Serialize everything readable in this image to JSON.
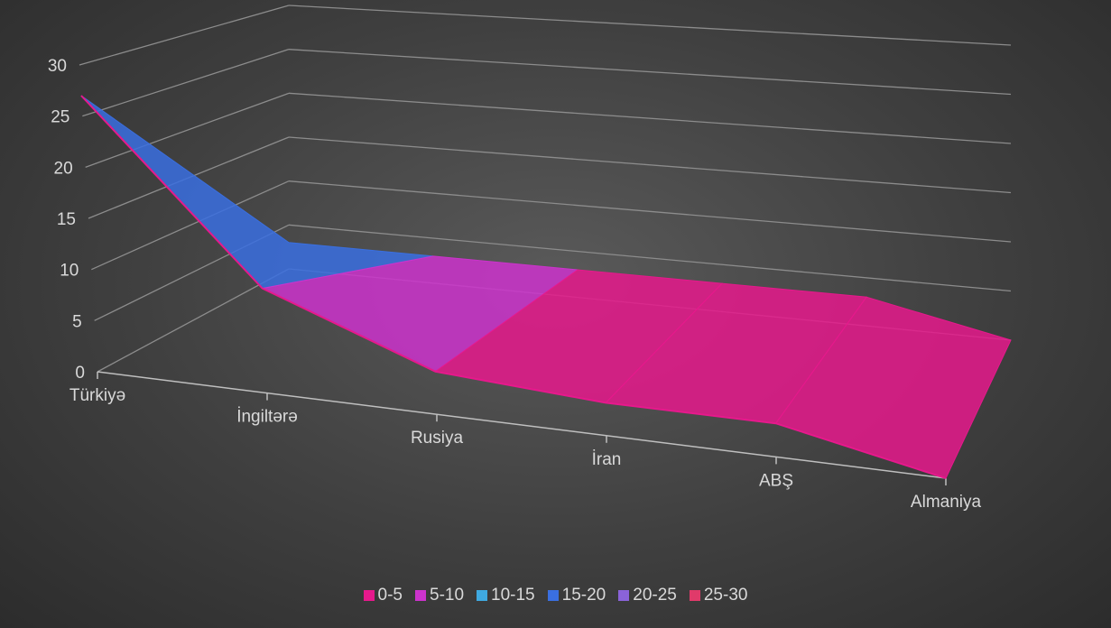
{
  "chart_data": {
    "type": "surface",
    "categories": [
      "Türkiyə",
      "İngiltərə",
      "Rusiya",
      "İran",
      "ABŞ",
      "Almaniya"
    ],
    "values": [
      27,
      10,
      4,
      3,
      3,
      0
    ],
    "ylim": [
      0,
      30
    ],
    "yticks": [
      "0",
      "5",
      "10",
      "15",
      "20",
      "25",
      "30"
    ],
    "grid": true,
    "legend_position": "bottom",
    "bands": [
      {
        "name": "0-5",
        "color": "#e6198c"
      },
      {
        "name": "5-10",
        "color": "#cc33cc"
      },
      {
        "name": "10-15",
        "color": "#3fa9e0"
      },
      {
        "name": "15-20",
        "color": "#3a6fe0"
      },
      {
        "name": "20-25",
        "color": "#8a63d8"
      },
      {
        "name": "25-30",
        "color": "#e03a6a"
      }
    ]
  }
}
